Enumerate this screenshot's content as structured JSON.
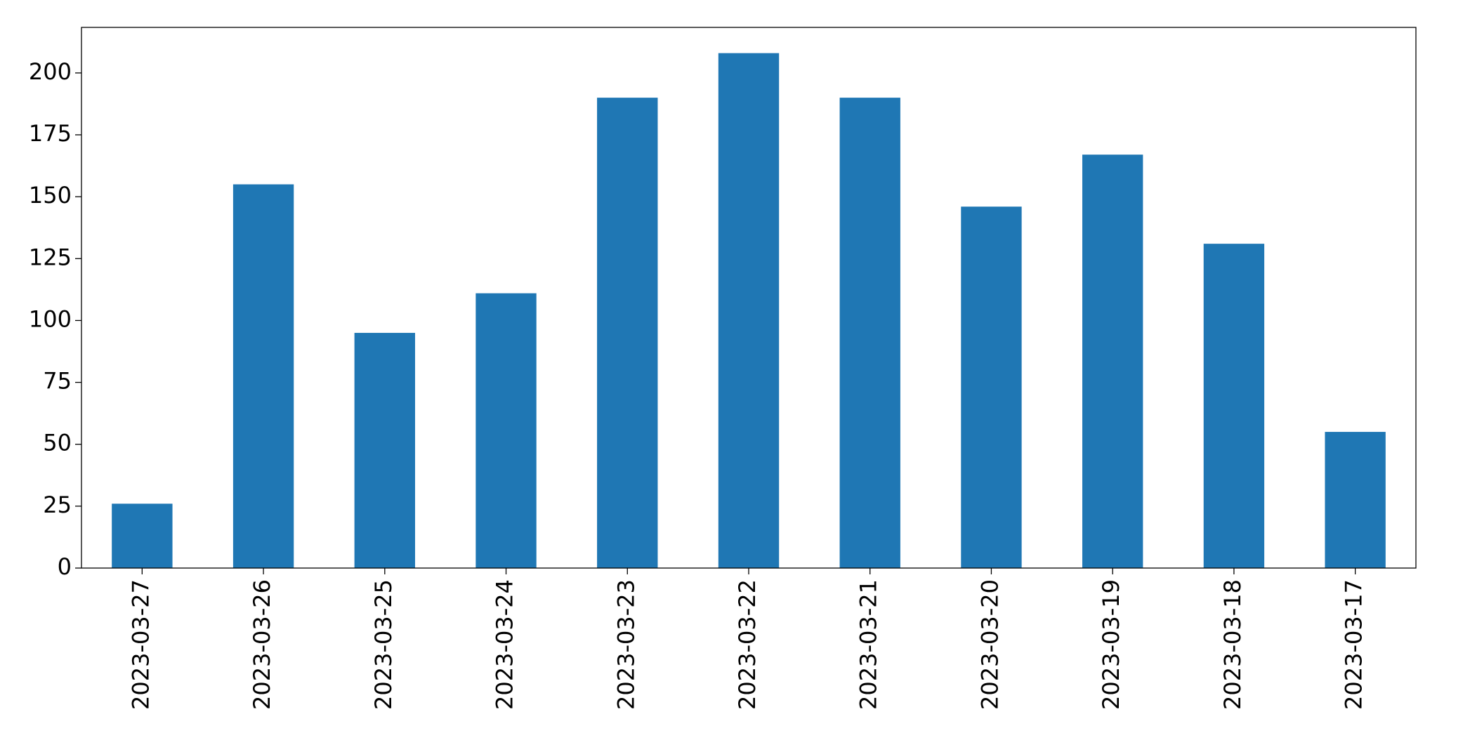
{
  "chart_data": {
    "type": "bar",
    "categories": [
      "2023-03-27",
      "2023-03-26",
      "2023-03-25",
      "2023-03-24",
      "2023-03-23",
      "2023-03-22",
      "2023-03-21",
      "2023-03-20",
      "2023-03-19",
      "2023-03-18",
      "2023-03-17"
    ],
    "values": [
      26,
      155,
      95,
      111,
      190,
      208,
      190,
      146,
      167,
      131,
      55
    ],
    "color": "#1f77b4",
    "ylim": [
      0,
      218.4
    ],
    "yticks": [
      0,
      25,
      50,
      75,
      100,
      125,
      150,
      175,
      200
    ],
    "grid": false
  }
}
